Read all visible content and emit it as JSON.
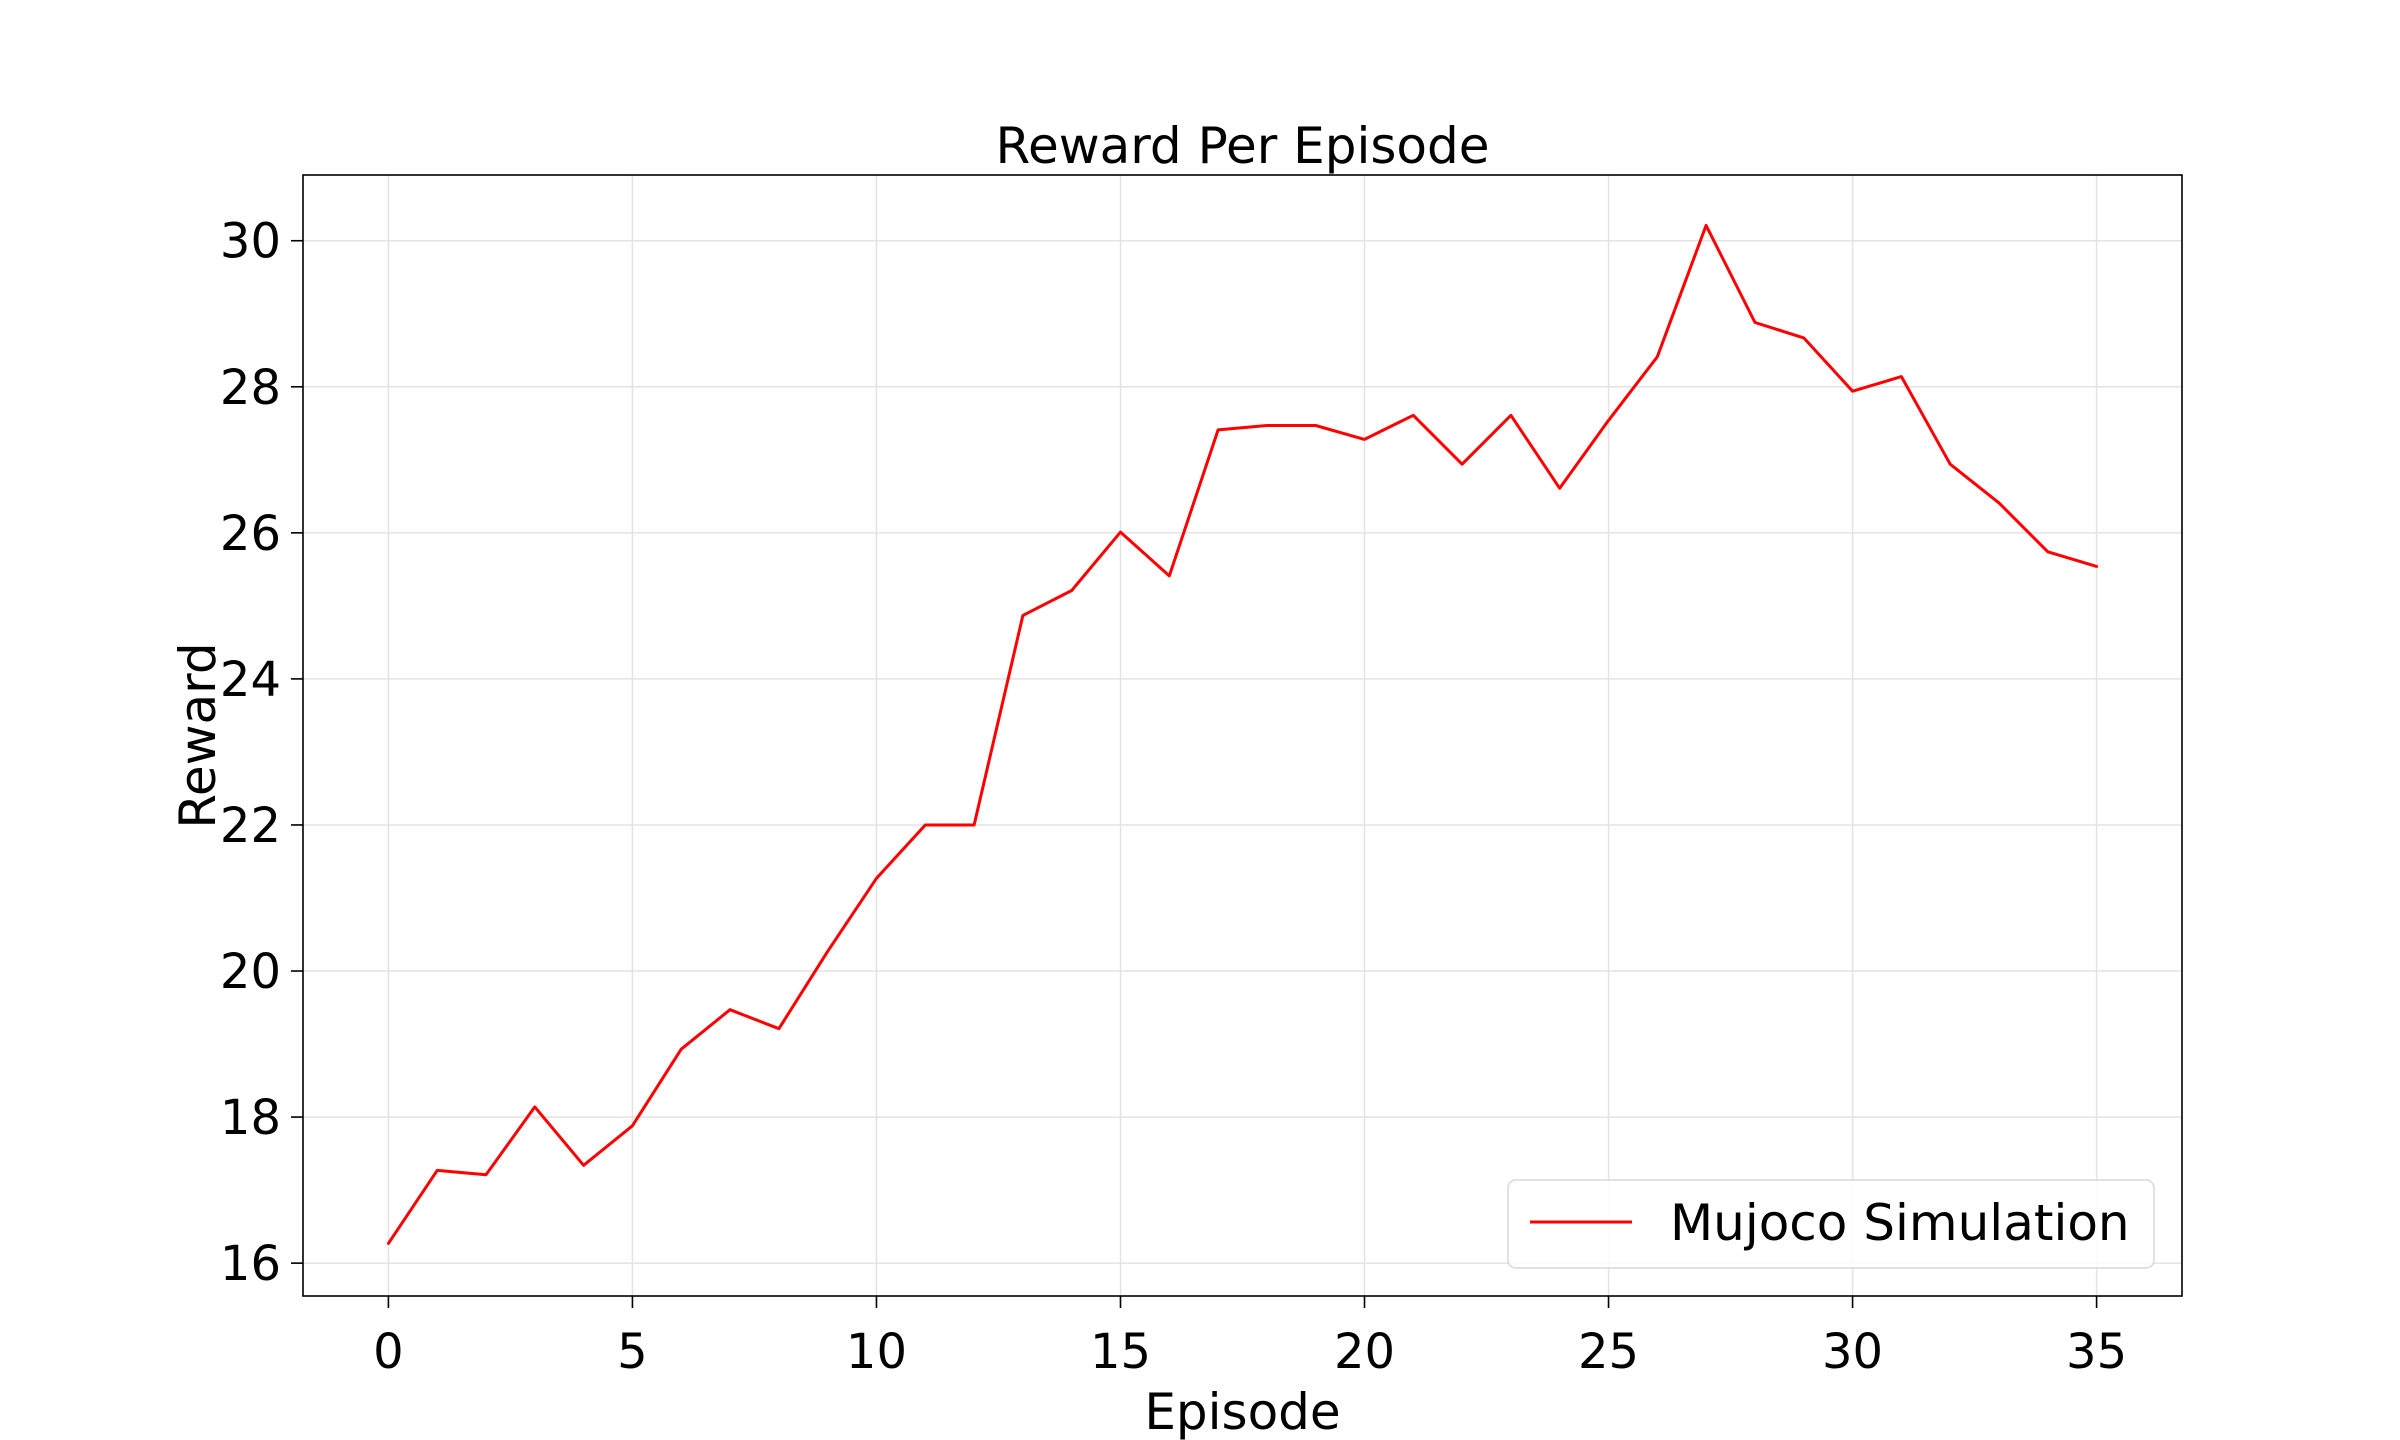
{
  "chart_data": {
    "type": "line",
    "title": "Reward Per Episode",
    "xlabel": "Episode",
    "ylabel": "Reward",
    "xlim": [
      -1.75,
      36.75
    ],
    "ylim": [
      15.55,
      30.9
    ],
    "xticks": [
      0,
      5,
      10,
      15,
      20,
      25,
      30,
      35
    ],
    "yticks": [
      16,
      18,
      20,
      22,
      24,
      26,
      28,
      30
    ],
    "grid": true,
    "legend_position": "lower-right",
    "series": [
      {
        "name": "Mujoco Simulation",
        "color": "#ff0000",
        "x": [
          0,
          1,
          2,
          3,
          4,
          5,
          6,
          7,
          8,
          9,
          10,
          11,
          12,
          13,
          14,
          15,
          16,
          17,
          18,
          19,
          20,
          21,
          22,
          23,
          24,
          25,
          26,
          27,
          28,
          29,
          30,
          31,
          32,
          33,
          34,
          35
        ],
        "values": [
          16.27,
          17.27,
          17.21,
          18.14,
          17.34,
          17.88,
          18.93,
          19.47,
          19.21,
          20.27,
          21.27,
          22.0,
          22.0,
          24.87,
          25.21,
          26.01,
          25.41,
          27.41,
          27.47,
          27.47,
          27.28,
          27.61,
          26.94,
          27.61,
          26.61,
          27.54,
          28.41,
          30.21,
          28.88,
          28.67,
          27.94,
          28.14,
          26.94,
          26.41,
          25.74,
          25.54
        ]
      }
    ]
  }
}
